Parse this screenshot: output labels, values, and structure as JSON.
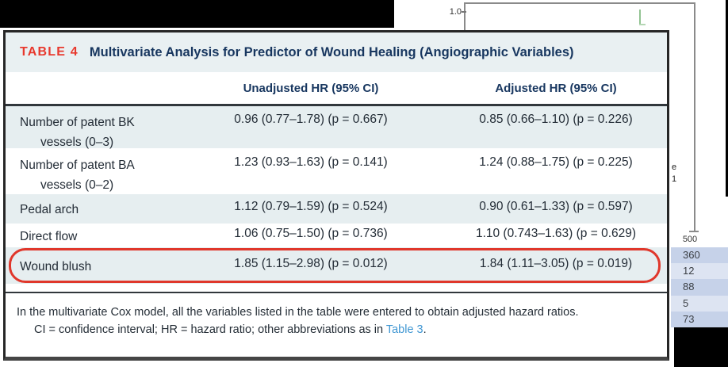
{
  "colors": {
    "accent_red": "#e8392e",
    "navy": "#17365f",
    "row_light_blue": "#e6eef0",
    "link_blue": "#4097d3",
    "side_row_dark": "#c6d2e9",
    "side_row_light": "#dde4f2",
    "censor_green": "#92c392"
  },
  "background": {
    "chart": {
      "y_tick_label": "1.0",
      "x_tick_label": "500"
    },
    "text_fragments": {
      "frag1": "e",
      "frag2": "1"
    },
    "side_numbers": [
      "360",
      "12",
      "88",
      "5",
      "73"
    ]
  },
  "table": {
    "label": "TABLE 4",
    "title": "Multivariate Analysis for Predictor of Wound Healing (Angiographic Variables)",
    "columns": [
      "",
      "Unadjusted HR (95% CI)",
      "Adjusted HR (95% CI)"
    ],
    "rows": [
      {
        "label_line1": "Number of patent BK",
        "label_line2": "vessels (0–3)",
        "unadjusted": "0.96 (0.77–1.78) (p = 0.667)",
        "adjusted": "0.85 (0.66–1.10) (p = 0.226)",
        "highlight": false
      },
      {
        "label_line1": "Number of patent BA",
        "label_line2": "vessels (0–2)",
        "unadjusted": "1.23 (0.93–1.63) (p = 0.141)",
        "adjusted": "1.24 (0.88–1.75) (p = 0.225)",
        "highlight": false
      },
      {
        "label_line1": "Pedal arch",
        "label_line2": "",
        "unadjusted": "1.12 (0.79–1.59) (p = 0.524)",
        "adjusted": "0.90 (0.61–1.33) (p = 0.597)",
        "highlight": false
      },
      {
        "label_line1": "Direct flow",
        "label_line2": "",
        "unadjusted": "1.06 (0.75–1.50) (p = 0.736)",
        "adjusted": "1.10 (0.743–1.63) (p = 0.629)",
        "highlight": false
      },
      {
        "label_line1": "Wound blush",
        "label_line2": "",
        "unadjusted": "1.85 (1.15–2.98) (p = 0.012)",
        "adjusted": "1.84 (1.11–3.05) (p = 0.019)",
        "highlight": true
      }
    ],
    "footnote_line1": "In the multivariate Cox model, all the variables listed in the table were entered to obtain adjusted hazard ratios.",
    "footnote_line2_prefix": "CI = confidence interval; HR = hazard ratio; other abbreviations as in ",
    "footnote_link": "Table 3",
    "footnote_suffix": "."
  }
}
